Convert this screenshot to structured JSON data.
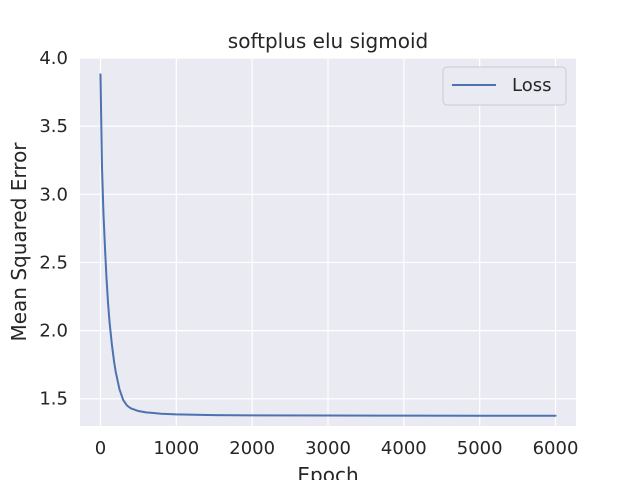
{
  "chart_data": {
    "type": "line",
    "title": "softplus elu sigmoid",
    "xlabel": "Epoch",
    "ylabel": "Mean Squared Error",
    "xlim": [
      -270,
      6270
    ],
    "ylim": [
      1.3,
      4.0
    ],
    "xticks": [
      0,
      1000,
      2000,
      3000,
      4000,
      5000,
      6000
    ],
    "xtick_labels": [
      "0",
      "1000",
      "2000",
      "3000",
      "4000",
      "5000",
      "6000"
    ],
    "yticks": [
      1.5,
      2.0,
      2.5,
      3.0,
      3.5,
      4.0
    ],
    "ytick_labels": [
      "1.5",
      "2.0",
      "2.5",
      "3.0",
      "3.5",
      "4.0"
    ],
    "grid": true,
    "legend_position": "top-right",
    "series": [
      {
        "name": "Loss",
        "color": "#4c72b0",
        "x": [
          0,
          20,
          40,
          60,
          80,
          100,
          120,
          150,
          180,
          200,
          250,
          300,
          350,
          400,
          500,
          600,
          700,
          800,
          1000,
          1500,
          2000,
          3000,
          4000,
          5000,
          6000
        ],
        "y": [
          3.88,
          3.2,
          2.85,
          2.6,
          2.38,
          2.2,
          2.06,
          1.9,
          1.77,
          1.7,
          1.57,
          1.49,
          1.45,
          1.43,
          1.41,
          1.4,
          1.395,
          1.39,
          1.385,
          1.38,
          1.378,
          1.377,
          1.376,
          1.375,
          1.375
        ]
      }
    ]
  }
}
